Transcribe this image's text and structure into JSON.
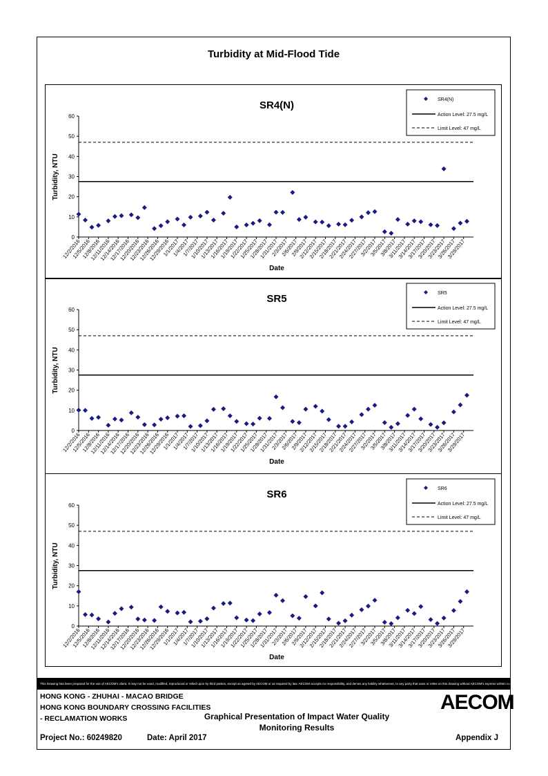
{
  "page": {
    "title": "Turbidity at Mid-Flood Tide",
    "disclaimer": "This Drawing has been prepared for the use of AECOM's client. It may not be used, modified, reproduced or relied upon by third parties, except as agreed by AECOM or as required by law. AECOM accepts no responsibility, and denies any liability whatsoever, to any party that uses or relies on this drawing without AECOM's express written consent.",
    "footer": {
      "project_line1": "HONG KONG - ZHUHAI - MACAO BRIDGE",
      "project_line2": "HONG KONG BOUNDARY CROSSING FACILITIES",
      "project_line3": "- RECLAMATION WORKS",
      "heading_line1": "Graphical Presentation of Impact Water Quality",
      "heading_line2": "Monitoring Results",
      "project_no": "Project No.: 60249820",
      "date": "Date: April 2017",
      "appendix": "Appendix J",
      "logo": "AECOM"
    }
  },
  "colors": {
    "marker": "#1a1a80",
    "line": "#000000"
  },
  "chart_data": [
    {
      "type": "scatter",
      "title": "SR4(N)",
      "xlabel": "Date",
      "ylabel": "Turbidity, NTU",
      "ylim": [
        0,
        60
      ],
      "yticks": [
        0,
        10,
        20,
        30,
        40,
        50,
        60
      ],
      "xticks": [
        "12/2/2016",
        "12/5/2016",
        "12/8/2016",
        "12/11/2016",
        "12/14/2016",
        "12/17/2016",
        "12/20/2016",
        "12/23/2016",
        "12/26/2016",
        "12/29/2016",
        "1/1/2017",
        "1/4/2017",
        "1/7/2017",
        "1/10/2017",
        "1/13/2017",
        "1/16/2017",
        "1/19/2017",
        "1/22/2017",
        "1/25/2017",
        "1/28/2017",
        "1/31/2017",
        "2/3/2017",
        "2/6/2017",
        "2/9/2017",
        "2/12/2017",
        "2/15/2017",
        "2/18/2017",
        "2/21/2017",
        "2/24/2017",
        "2/27/2017",
        "3/2/2017",
        "3/5/2017",
        "3/8/2017",
        "3/11/2017",
        "3/14/2017",
        "3/17/2017",
        "3/20/2017",
        "3/23/2017",
        "3/26/2017",
        "3/29/2017"
      ],
      "x_range_days": [
        0,
        120
      ],
      "legend": {
        "position": "top-right",
        "series": "SR4(N)",
        "action": "Action Level: 27.5 mg/L",
        "limit": "Limit Level: 47 mg/L"
      },
      "action_level": 27.5,
      "limit_level": 47,
      "points": [
        [
          0,
          11.3
        ],
        [
          2,
          8.4
        ],
        [
          4,
          4.9
        ],
        [
          6,
          5.8
        ],
        [
          9,
          8.0
        ],
        [
          11,
          10.2
        ],
        [
          13,
          10.6
        ],
        [
          16,
          11.0
        ],
        [
          18,
          9.6
        ],
        [
          20,
          14.6
        ],
        [
          23,
          4.2
        ],
        [
          25,
          5.6
        ],
        [
          27,
          7.6
        ],
        [
          30,
          8.9
        ],
        [
          32,
          6.0
        ],
        [
          34,
          9.8
        ],
        [
          37,
          10.4
        ],
        [
          39,
          12.3
        ],
        [
          41,
          8.4
        ],
        [
          44,
          11.8
        ],
        [
          46,
          19.7
        ],
        [
          48,
          5.0
        ],
        [
          51,
          6.0
        ],
        [
          53,
          6.8
        ],
        [
          55,
          8.1
        ],
        [
          58,
          6.1
        ],
        [
          60,
          12.3
        ],
        [
          62,
          12.2
        ],
        [
          65,
          22.1
        ],
        [
          67,
          8.7
        ],
        [
          69,
          9.8
        ],
        [
          72,
          7.5
        ],
        [
          74,
          7.4
        ],
        [
          76,
          5.6
        ],
        [
          79,
          6.4
        ],
        [
          81,
          6.1
        ],
        [
          83,
          8.3
        ],
        [
          86,
          10.0
        ],
        [
          88,
          12.1
        ],
        [
          90,
          12.6
        ],
        [
          93,
          2.6
        ],
        [
          95,
          1.9
        ],
        [
          97,
          8.7
        ],
        [
          100,
          6.4
        ],
        [
          102,
          8.0
        ],
        [
          104,
          7.6
        ],
        [
          107,
          6.1
        ],
        [
          109,
          5.7
        ],
        [
          111,
          33.8
        ],
        [
          114,
          4.2
        ],
        [
          116,
          6.9
        ],
        [
          118,
          7.8
        ]
      ]
    },
    {
      "type": "scatter",
      "title": "SR5",
      "xlabel": "Date",
      "ylabel": "Turbidity, NTU",
      "ylim": [
        0,
        60
      ],
      "yticks": [
        0,
        10,
        20,
        30,
        40,
        50,
        60
      ],
      "xticks": [
        "12/2/2016",
        "12/5/2016",
        "12/8/2016",
        "12/11/2016",
        "12/14/2016",
        "12/17/2016",
        "12/20/2016",
        "12/23/2016",
        "12/26/2016",
        "12/29/2016",
        "1/1/2017",
        "1/4/2017",
        "1/7/2017",
        "1/10/2017",
        "1/13/2017",
        "1/16/2017",
        "1/19/2017",
        "1/22/2017",
        "1/25/2017",
        "1/28/2017",
        "1/31/2017",
        "2/3/2017",
        "2/6/2017",
        "2/9/2017",
        "2/12/2017",
        "2/15/2017",
        "2/18/2017",
        "2/21/2017",
        "2/24/2017",
        "2/27/2017",
        "3/2/2017",
        "3/5/2017",
        "3/8/2017",
        "3/11/2017",
        "3/14/2017",
        "3/17/2017",
        "3/20/2017",
        "3/23/2017",
        "3/26/2017",
        "3/29/2017"
      ],
      "x_range_days": [
        0,
        120
      ],
      "legend": {
        "position": "top-right",
        "series": "SR5",
        "action": "Action Level: 27.5 mg/L",
        "limit": "Limit Level: 47 mg/L"
      },
      "action_level": 27.5,
      "limit_level": 47,
      "points": [
        [
          0,
          10.1
        ],
        [
          2,
          10.0
        ],
        [
          4,
          6.0
        ],
        [
          6,
          6.5
        ],
        [
          9,
          2.6
        ],
        [
          11,
          5.7
        ],
        [
          13,
          5.2
        ],
        [
          16,
          8.8
        ],
        [
          18,
          6.6
        ],
        [
          20,
          2.9
        ],
        [
          23,
          2.8
        ],
        [
          25,
          5.6
        ],
        [
          27,
          6.3
        ],
        [
          30,
          7.1
        ],
        [
          32,
          7.3
        ],
        [
          34,
          2.0
        ],
        [
          37,
          2.4
        ],
        [
          39,
          4.8
        ],
        [
          41,
          10.5
        ],
        [
          44,
          10.8
        ],
        [
          46,
          7.3
        ],
        [
          48,
          4.5
        ],
        [
          51,
          3.4
        ],
        [
          53,
          3.2
        ],
        [
          55,
          6.1
        ],
        [
          58,
          6.0
        ],
        [
          60,
          16.7
        ],
        [
          62,
          11.3
        ],
        [
          65,
          4.5
        ],
        [
          67,
          3.9
        ],
        [
          69,
          10.6
        ],
        [
          72,
          12.0
        ],
        [
          74,
          9.6
        ],
        [
          76,
          5.4
        ],
        [
          79,
          2.1
        ],
        [
          81,
          2.1
        ],
        [
          83,
          4.3
        ],
        [
          86,
          7.9
        ],
        [
          88,
          10.6
        ],
        [
          90,
          12.5
        ],
        [
          93,
          3.9
        ],
        [
          95,
          1.6
        ],
        [
          97,
          3.4
        ],
        [
          100,
          7.5
        ],
        [
          102,
          10.6
        ],
        [
          104,
          5.8
        ],
        [
          107,
          3.0
        ],
        [
          109,
          1.6
        ],
        [
          111,
          3.8
        ],
        [
          114,
          9.2
        ],
        [
          116,
          12.7
        ],
        [
          118,
          17.5
        ]
      ]
    },
    {
      "type": "scatter",
      "title": "SR6",
      "xlabel": "Date",
      "ylabel": "Turbidity, NTU",
      "ylim": [
        0,
        60
      ],
      "yticks": [
        0,
        10,
        20,
        30,
        40,
        50,
        60
      ],
      "xticks": [
        "12/2/2016",
        "12/5/2016",
        "12/8/2016",
        "12/11/2016",
        "12/14/2016",
        "12/17/2016",
        "12/20/2016",
        "12/23/2016",
        "12/26/2016",
        "12/29/2016",
        "1/1/2017",
        "1/4/2017",
        "1/7/2017",
        "1/10/2017",
        "1/13/2017",
        "1/16/2017",
        "1/19/2017",
        "1/22/2017",
        "1/25/2017",
        "1/28/2017",
        "1/31/2017",
        "2/3/2017",
        "2/6/2017",
        "2/9/2017",
        "2/12/2017",
        "2/15/2017",
        "2/18/2017",
        "2/21/2017",
        "2/24/2017",
        "2/27/2017",
        "3/2/2017",
        "3/5/2017",
        "3/8/2017",
        "3/11/2017",
        "3/14/2017",
        "3/17/2017",
        "3/20/2017",
        "3/23/2017",
        "3/26/2017",
        "3/29/2017"
      ],
      "x_range_days": [
        0,
        120
      ],
      "legend": {
        "position": "top-right",
        "series": "SR6",
        "action": "Action Level: 27.5 mg/L",
        "limit": "Limit Level: 47 mg/L"
      },
      "action_level": 27.5,
      "limit_level": 47,
      "points": [
        [
          0,
          17.0
        ],
        [
          2,
          5.7
        ],
        [
          4,
          5.5
        ],
        [
          6,
          3.6
        ],
        [
          9,
          2.0
        ],
        [
          11,
          6.3
        ],
        [
          13,
          8.6
        ],
        [
          16,
          9.4
        ],
        [
          18,
          3.5
        ],
        [
          20,
          3.0
        ],
        [
          23,
          2.8
        ],
        [
          25,
          9.5
        ],
        [
          27,
          7.3
        ],
        [
          30,
          6.5
        ],
        [
          32,
          6.8
        ],
        [
          34,
          2.1
        ],
        [
          37,
          2.4
        ],
        [
          39,
          3.6
        ],
        [
          41,
          8.9
        ],
        [
          44,
          11.2
        ],
        [
          46,
          11.4
        ],
        [
          48,
          4.1
        ],
        [
          51,
          3.0
        ],
        [
          53,
          2.7
        ],
        [
          55,
          6.0
        ],
        [
          58,
          6.7
        ],
        [
          60,
          15.3
        ],
        [
          62,
          12.6
        ],
        [
          65,
          5.1
        ],
        [
          67,
          3.9
        ],
        [
          69,
          14.6
        ],
        [
          72,
          10.0
        ],
        [
          74,
          16.5
        ],
        [
          76,
          3.5
        ],
        [
          79,
          1.4
        ],
        [
          81,
          2.6
        ],
        [
          83,
          5.4
        ],
        [
          86,
          8.1
        ],
        [
          88,
          9.9
        ],
        [
          90,
          12.8
        ],
        [
          93,
          1.9
        ],
        [
          95,
          1.2
        ],
        [
          97,
          4.1
        ],
        [
          100,
          7.8
        ],
        [
          102,
          6.2
        ],
        [
          104,
          9.7
        ],
        [
          107,
          3.2
        ],
        [
          109,
          1.3
        ],
        [
          111,
          4.0
        ],
        [
          114,
          7.7
        ],
        [
          116,
          12.2
        ],
        [
          118,
          17.0
        ]
      ]
    }
  ]
}
